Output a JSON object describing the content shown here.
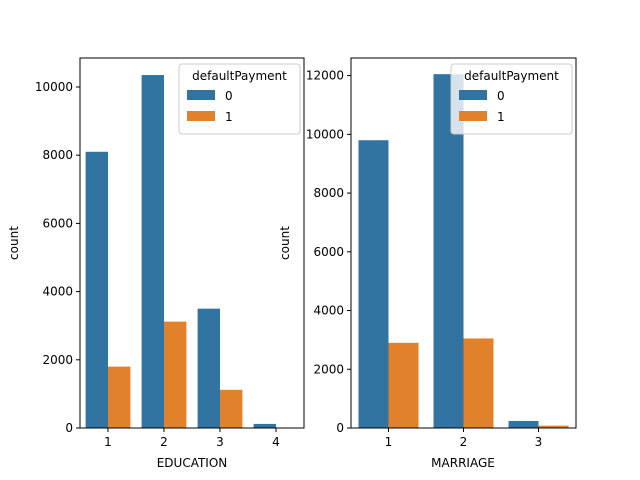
{
  "chart_data": [
    {
      "type": "bar",
      "xlabel": "EDUCATION",
      "ylabel": "count",
      "categories": [
        "1",
        "2",
        "3",
        "4"
      ],
      "ylim": [
        0,
        10850
      ],
      "yticks": [
        0,
        2000,
        4000,
        6000,
        8000,
        10000
      ],
      "ytick_labels": [
        "0",
        "2000",
        "4000",
        "6000",
        "8000",
        "10000"
      ],
      "series": [
        {
          "name": "0",
          "color": "#3274a1",
          "values": [
            8100,
            10350,
            3500,
            120
          ]
        },
        {
          "name": "1",
          "color": "#e1812c",
          "values": [
            1800,
            3120,
            1120,
            10
          ]
        }
      ],
      "legend": {
        "title": "defaultPayment",
        "placement": "top-right"
      },
      "grid": false
    },
    {
      "type": "bar",
      "xlabel": "MARRIAGE",
      "ylabel": "count",
      "categories": [
        "1",
        "2",
        "3"
      ],
      "ylim": [
        0,
        12600
      ],
      "yticks": [
        0,
        2000,
        4000,
        6000,
        8000,
        10000,
        12000
      ],
      "ytick_labels": [
        "0",
        "2000",
        "4000",
        "6000",
        "8000",
        "10000",
        "12000"
      ],
      "series": [
        {
          "name": "0",
          "color": "#3274a1",
          "values": [
            9800,
            12050,
            240
          ]
        },
        {
          "name": "1",
          "color": "#e1812c",
          "values": [
            2900,
            3050,
            80
          ]
        }
      ],
      "legend": {
        "title": "defaultPayment",
        "placement": "top-right"
      },
      "grid": false
    }
  ]
}
